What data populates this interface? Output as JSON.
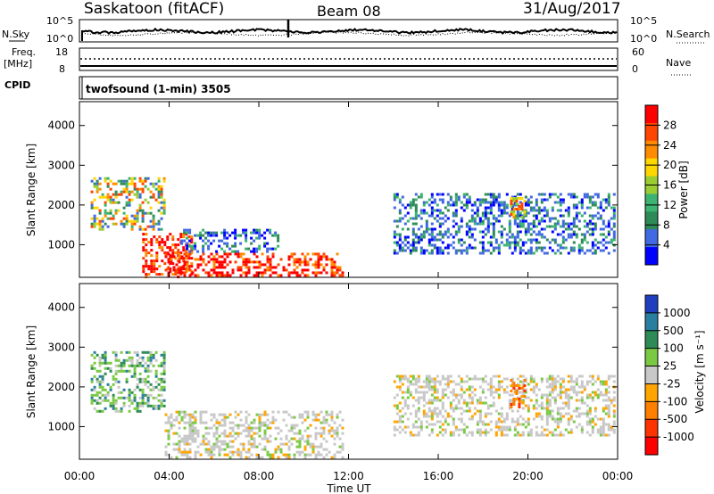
{
  "header": {
    "station": "Saskatoon (fitACF)",
    "beam": "Beam 08",
    "date": "31/Aug/2017",
    "cpid_label": "CPID",
    "cpid_text": "twofsound (1-min) 3505"
  },
  "noise_panel": {
    "left_label": "N.Sky",
    "right_label": "N.Search",
    "left_ticks": [
      "10^5",
      "10^0"
    ],
    "right_ticks": [
      "10^5",
      "10^0"
    ]
  },
  "freq_panel": {
    "left_label_1": "Freq.",
    "left_label_2": "[MHz]",
    "right_label": "Nave",
    "left_ticks": [
      "18",
      "8"
    ],
    "right_ticks": [
      "60",
      "0"
    ]
  },
  "power_panel": {
    "ylabel": "Slant Range [km]",
    "yticks": [
      "4000",
      "3000",
      "2000",
      "1000"
    ],
    "colorbar_label": "Power [dB]",
    "colorbar_ticks": [
      "28",
      "24",
      "20",
      "16",
      "12",
      "8",
      "4"
    ],
    "colorbar_colors": [
      "#ff0000",
      "#ff4500",
      "#ff8c00",
      "#ffd700",
      "#9acd32",
      "#3cb371",
      "#2e8b57",
      "#4169e1",
      "#0000ff"
    ]
  },
  "velocity_panel": {
    "ylabel": "Slant Range [km]",
    "yticks": [
      "4000",
      "3000",
      "2000",
      "1000"
    ],
    "colorbar_label": "Velocity [m s⁻¹]",
    "colorbar_ticks": [
      "1000",
      "500",
      "100",
      "25",
      "-25",
      "-100",
      "-500",
      "-1000"
    ],
    "colorbar_colors": [
      "#1f3fbf",
      "#2a7fa0",
      "#2e8b57",
      "#7ac943",
      "#c8c8c8",
      "#ffa500",
      "#ff7f00",
      "#ff3300",
      "#ff0000"
    ]
  },
  "xaxis": {
    "ticks": [
      "00:00",
      "04:00",
      "08:00",
      "12:00",
      "16:00",
      "20:00",
      "00:00"
    ],
    "label": "Time UT"
  },
  "chart_data": [
    {
      "type": "heatmap",
      "quantity": "Power [dB]",
      "x": "Time UT",
      "y": "Slant Range [km]",
      "xlim": [
        0,
        24
      ],
      "ylim": [
        180,
        4600
      ],
      "clim": [
        0,
        30
      ],
      "regions": [
        {
          "t0": 0.5,
          "t1": 3.8,
          "r0": 1400,
          "r1": 2700,
          "level": "mixed 8-20"
        },
        {
          "t0": 2.8,
          "t1": 5.0,
          "r0": 200,
          "r1": 1300,
          "level": "strong 24-30"
        },
        {
          "t0": 3.8,
          "t1": 11.8,
          "r0": 200,
          "r1": 800,
          "level": "strong 24-30"
        },
        {
          "t0": 4.5,
          "t1": 8.8,
          "r0": 800,
          "r1": 1400,
          "level": "weak 4-12"
        },
        {
          "t0": 14.0,
          "t1": 23.8,
          "r0": 800,
          "r1": 2300,
          "level": "weak 4-12"
        },
        {
          "t0": 19.2,
          "t1": 19.8,
          "r0": 1700,
          "r1": 2200,
          "level": "moderate 16-24"
        }
      ]
    },
    {
      "type": "heatmap",
      "quantity": "Velocity [m s-1]",
      "x": "Time UT",
      "y": "Slant Range [km]",
      "xlim": [
        0,
        24
      ],
      "ylim": [
        180,
        4600
      ],
      "clim": [
        -1000,
        1000
      ],
      "regions": [
        {
          "t0": 0.5,
          "t1": 3.8,
          "r0": 1400,
          "r1": 2900,
          "level": "positive 100-500"
        },
        {
          "t0": 3.8,
          "t1": 11.8,
          "r0": 200,
          "r1": 1400,
          "level": "near zero -25..25"
        },
        {
          "t0": 14.0,
          "t1": 23.8,
          "r0": 800,
          "r1": 2300,
          "level": "near zero -25..25"
        },
        {
          "t0": 19.2,
          "t1": 19.8,
          "r0": 1500,
          "r1": 2200,
          "level": "negative -100..-500"
        }
      ]
    }
  ]
}
